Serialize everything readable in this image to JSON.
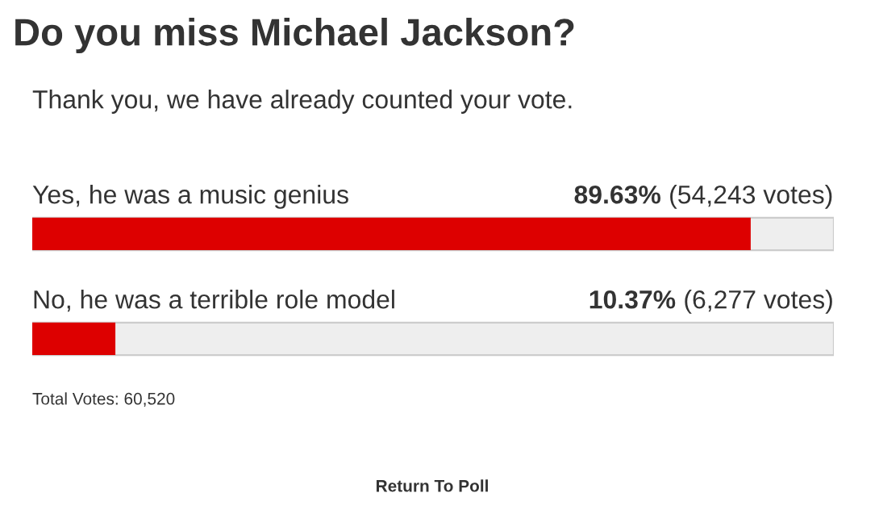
{
  "chart_data": {
    "type": "bar",
    "orientation": "horizontal",
    "title": "Do you miss Michael Jackson?",
    "subtitle": "Thank you, we have already counted your vote.",
    "categories": [
      "Yes, he was a music genius",
      "No, he was a terrible role model"
    ],
    "values": [
      89.63,
      10.37
    ],
    "value_labels": [
      "89.63% (54,243 votes)",
      "10.37% (6,277 votes)"
    ],
    "color": "#dd0000",
    "tick_labels": false,
    "annotations": [
      "Total Votes: 60,520",
      "Return To Poll"
    ]
  }
}
